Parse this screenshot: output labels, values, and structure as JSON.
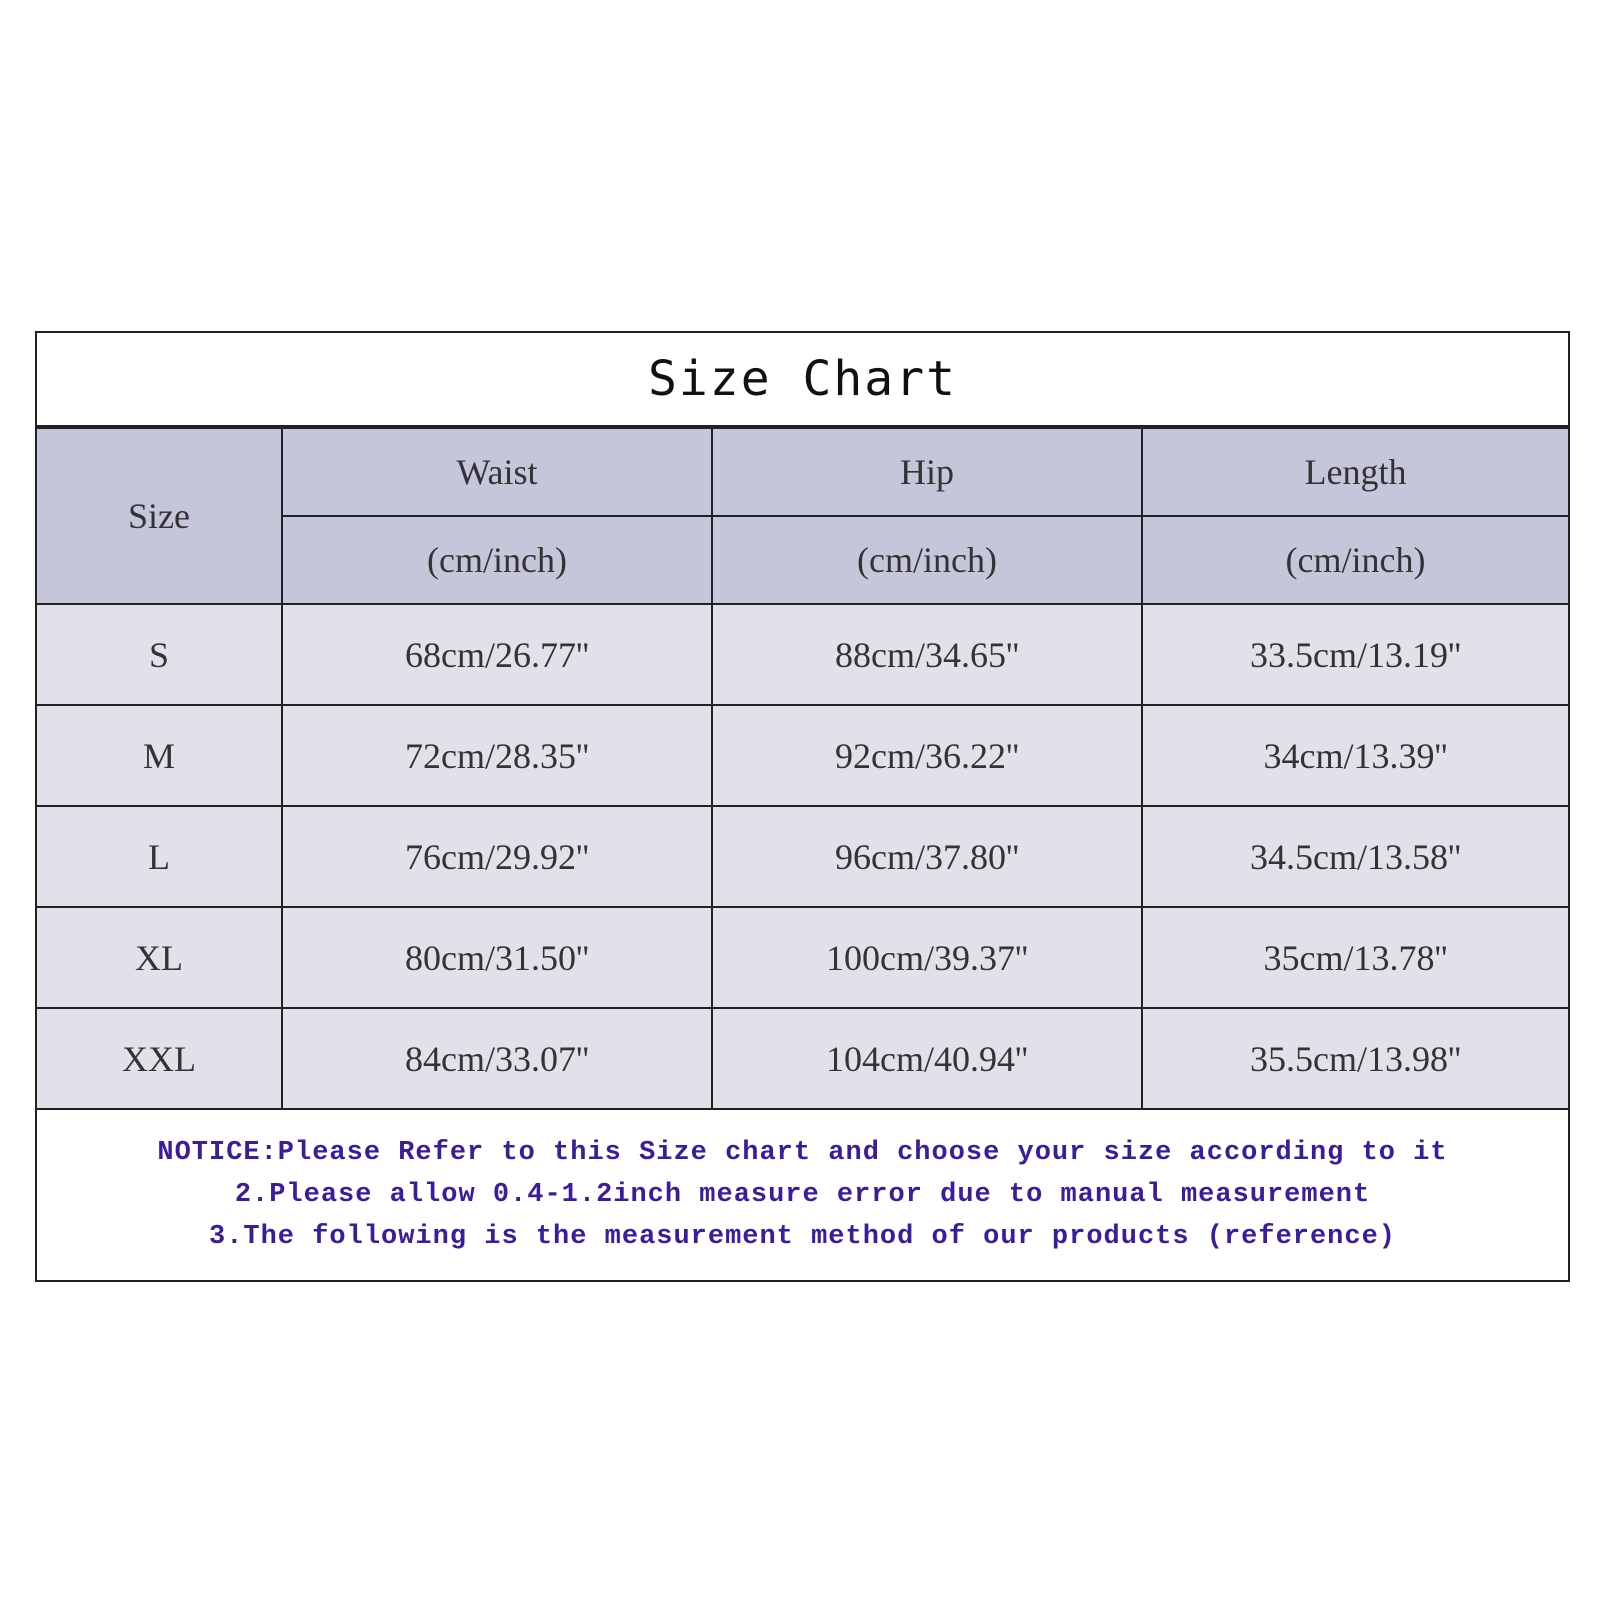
{
  "title": "Size Chart",
  "header": {
    "size": "Size",
    "columns": [
      {
        "name": "Waist",
        "unit": "(cm/inch)"
      },
      {
        "name": "Hip",
        "unit": "(cm/inch)"
      },
      {
        "name": "Length",
        "unit": "(cm/inch)"
      }
    ]
  },
  "rows": [
    {
      "size": "S",
      "waist": "68cm/26.77''",
      "hip": "88cm/34.65''",
      "length": "33.5cm/13.19''"
    },
    {
      "size": "M",
      "waist": "72cm/28.35''",
      "hip": "92cm/36.22''",
      "length": "34cm/13.39''"
    },
    {
      "size": "L",
      "waist": "76cm/29.92''",
      "hip": "96cm/37.80''",
      "length": "34.5cm/13.58''"
    },
    {
      "size": "XL",
      "waist": "80cm/31.50''",
      "hip": "100cm/39.37''",
      "length": "35cm/13.78''"
    },
    {
      "size": "XXL",
      "waist": "84cm/33.07''",
      "hip": "104cm/40.94''",
      "length": "35.5cm/13.98''"
    }
  ],
  "notice": [
    "NOTICE:Please Refer to this Size chart and choose your size according to it",
    "2.Please allow 0.4-1.2inch measure error due to manual measurement",
    "3.The following is the measurement method of our products (reference)"
  ],
  "colors": {
    "header_bg": "#c6c6da",
    "row_bg": "#e1e1e9",
    "notice_text": "#3a1c9c"
  }
}
